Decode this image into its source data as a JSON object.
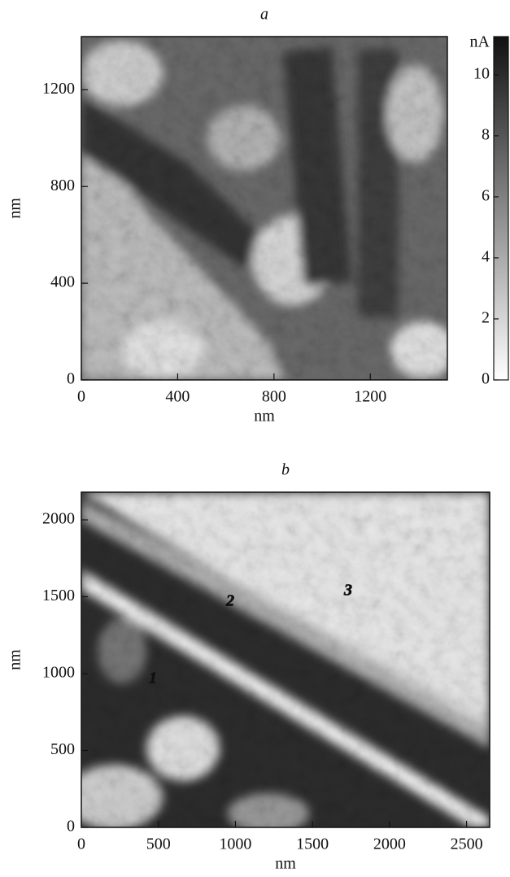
{
  "chart_data": [
    {
      "type": "image",
      "title": "a",
      "xlabel": "nm",
      "ylabel": "nm",
      "xlim": [
        0,
        1520
      ],
      "ylim": [
        0,
        1420
      ],
      "xticks": [
        0,
        400,
        800,
        1200
      ],
      "yticks": [
        0,
        400,
        800,
        1200
      ],
      "colorbar": {
        "label": "nA",
        "lim": [
          0,
          11.25
        ],
        "ticks": [
          0,
          2,
          4,
          6,
          8,
          10
        ]
      }
    },
    {
      "type": "image",
      "title": "b",
      "xlabel": "nm",
      "ylabel": "nm",
      "xlim": [
        0,
        2650
      ],
      "ylim": [
        0,
        2180
      ],
      "xticks": [
        0,
        500,
        1000,
        1500,
        2000,
        2500
      ],
      "yticks": [
        0,
        500,
        1000,
        1500,
        2000
      ],
      "annotations": [
        "1",
        "2",
        "3"
      ]
    }
  ]
}
